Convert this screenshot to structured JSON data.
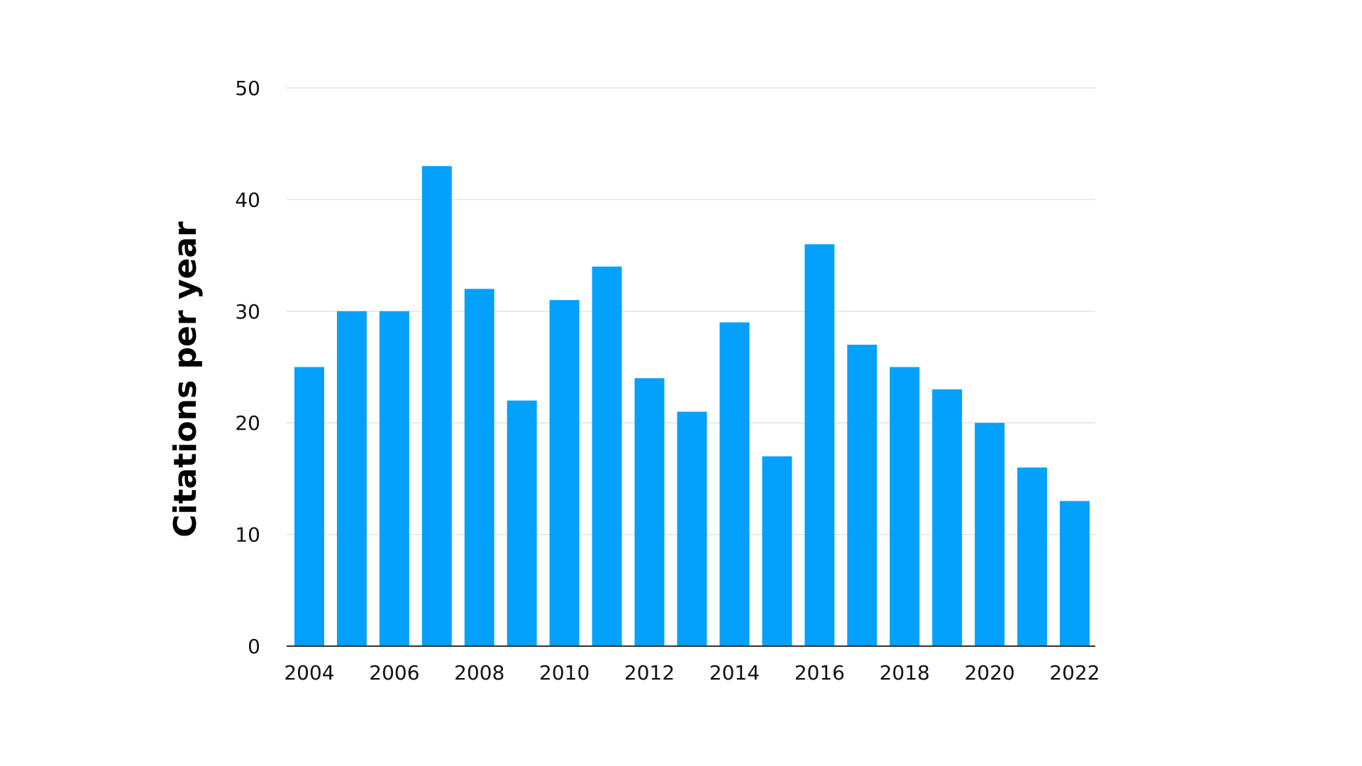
{
  "chart_data": {
    "type": "bar",
    "ylabel": "Citations per year",
    "ylim": [
      0,
      50
    ],
    "yticks": [
      "0",
      "10",
      "20",
      "30",
      "40",
      "50"
    ],
    "grid": true,
    "categories": [
      "2004",
      "2005",
      "2006",
      "2007",
      "2008",
      "2009",
      "2010",
      "2011",
      "2012",
      "2013",
      "2014",
      "2015",
      "2016",
      "2017",
      "2018",
      "2019",
      "2020",
      "2021",
      "2022"
    ],
    "xtick_labels": [
      "2004",
      "2006",
      "2008",
      "2010",
      "2012",
      "2014",
      "2016",
      "2018",
      "2020",
      "2022"
    ],
    "values": [
      25,
      30,
      30,
      43,
      32,
      22,
      31,
      34,
      24,
      21,
      29,
      17,
      36,
      27,
      25,
      23,
      20,
      16,
      13
    ],
    "bar_color": "#03a1fc"
  }
}
